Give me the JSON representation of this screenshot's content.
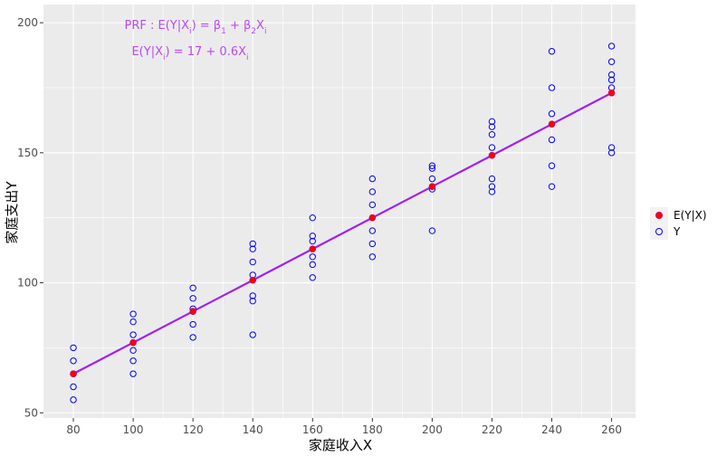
{
  "chart_data": {
    "type": "scatter",
    "xlabel": "家庭收入X",
    "ylabel": "家庭支出Y",
    "xlim": [
      70,
      268
    ],
    "ylim": [
      48,
      207
    ],
    "x_ticks": [
      80,
      100,
      120,
      140,
      160,
      180,
      200,
      220,
      240,
      260
    ],
    "y_ticks": [
      50,
      100,
      150,
      200
    ],
    "grid": true,
    "legend_position": "right",
    "colors": {
      "mean": "#ff0000",
      "mean_edge": "#cc0055",
      "observed": "#0000ff",
      "line": "#a020f0",
      "annotation": "#b84bf0",
      "panel": "#ebebeb"
    },
    "series": [
      {
        "name": "E(Y|X)",
        "marker": "filled-circle",
        "points": [
          [
            80,
            65
          ],
          [
            100,
            77
          ],
          [
            120,
            89
          ],
          [
            140,
            101
          ],
          [
            160,
            113
          ],
          [
            180,
            125
          ],
          [
            200,
            137
          ],
          [
            220,
            149
          ],
          [
            240,
            161
          ],
          [
            260,
            173
          ]
        ]
      },
      {
        "name": "Y",
        "marker": "open-circle",
        "points": [
          [
            80,
            55
          ],
          [
            80,
            60
          ],
          [
            80,
            65
          ],
          [
            80,
            70
          ],
          [
            80,
            75
          ],
          [
            100,
            65
          ],
          [
            100,
            70
          ],
          [
            100,
            74
          ],
          [
            100,
            80
          ],
          [
            100,
            85
          ],
          [
            100,
            88
          ],
          [
            120,
            79
          ],
          [
            120,
            84
          ],
          [
            120,
            90
          ],
          [
            120,
            94
          ],
          [
            120,
            98
          ],
          [
            140,
            80
          ],
          [
            140,
            93
          ],
          [
            140,
            95
          ],
          [
            140,
            103
          ],
          [
            140,
            108
          ],
          [
            140,
            113
          ],
          [
            140,
            115
          ],
          [
            160,
            102
          ],
          [
            160,
            107
          ],
          [
            160,
            110
          ],
          [
            160,
            116
          ],
          [
            160,
            118
          ],
          [
            160,
            125
          ],
          [
            180,
            110
          ],
          [
            180,
            115
          ],
          [
            180,
            120
          ],
          [
            180,
            130
          ],
          [
            180,
            135
          ],
          [
            180,
            140
          ],
          [
            200,
            120
          ],
          [
            200,
            136
          ],
          [
            200,
            140
          ],
          [
            200,
            144
          ],
          [
            200,
            145
          ],
          [
            220,
            135
          ],
          [
            220,
            137
          ],
          [
            220,
            140
          ],
          [
            220,
            152
          ],
          [
            220,
            157
          ],
          [
            220,
            160
          ],
          [
            220,
            162
          ],
          [
            240,
            137
          ],
          [
            240,
            145
          ],
          [
            240,
            155
          ],
          [
            240,
            165
          ],
          [
            240,
            175
          ],
          [
            240,
            189
          ],
          [
            260,
            150
          ],
          [
            260,
            152
          ],
          [
            260,
            175
          ],
          [
            260,
            178
          ],
          [
            260,
            180
          ],
          [
            260,
            185
          ],
          [
            260,
            191
          ]
        ]
      }
    ],
    "line": {
      "x": [
        80,
        260
      ],
      "y": [
        65,
        173
      ]
    },
    "annotations": [
      {
        "text": "PRF : E(Y|Xi) = β1 + β2Xi",
        "x": 145,
        "y": 200
      },
      {
        "text": "E(Y|Xi) = 17 + 0.6Xi",
        "x": 145,
        "y": 190
      }
    ]
  }
}
